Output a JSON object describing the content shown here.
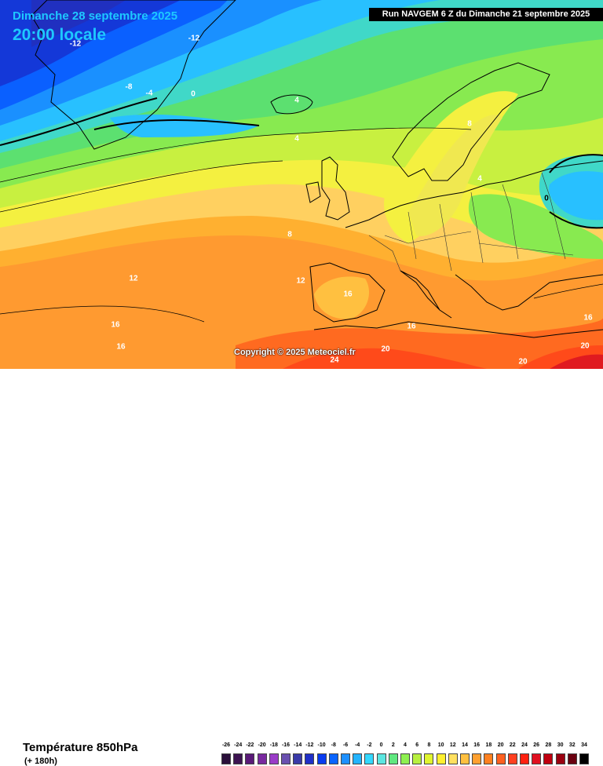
{
  "header": {
    "date": "Dimanche 28 septembre 2025",
    "time": "20:00 locale",
    "run": "Run NAVGEM 6 Z du Dimanche 21 septembre 2025"
  },
  "copyright": "Copyright © 2025 Meteociel.fr",
  "variable": {
    "title": "Température 850hPa",
    "lead": "(+ 180h)"
  },
  "isotherm_labels": [
    {
      "text": "-12"
    },
    {
      "text": "-12"
    },
    {
      "text": "-8"
    },
    {
      "text": "-4"
    },
    {
      "text": "0"
    },
    {
      "text": "4"
    },
    {
      "text": "4"
    },
    {
      "text": "8"
    },
    {
      "text": "4"
    },
    {
      "text": "0"
    },
    {
      "text": "8"
    },
    {
      "text": "12"
    },
    {
      "text": "12"
    },
    {
      "text": "16"
    },
    {
      "text": "16"
    },
    {
      "text": "16"
    },
    {
      "text": "16"
    },
    {
      "text": "16"
    },
    {
      "text": "20"
    },
    {
      "text": "24"
    },
    {
      "text": "20"
    },
    {
      "text": "20"
    }
  ],
  "legend": {
    "unit_ticks": [
      "-26",
      "-24",
      "-22",
      "-20",
      "-18",
      "-16",
      "-14",
      "-12",
      "-10",
      "-8",
      "-6",
      "-4",
      "-2",
      "0",
      "2",
      "4",
      "6",
      "8",
      "10",
      "12",
      "14",
      "16",
      "18",
      "20",
      "22",
      "24",
      "26",
      "28",
      "30",
      "32",
      "34"
    ],
    "colors": [
      "#2a0f3a",
      "#3d1452",
      "#5a1a78",
      "#7a2aa0",
      "#9a3cc8",
      "#6a50b0",
      "#3a3aa8",
      "#2030c8",
      "#0a3cf0",
      "#0a64ff",
      "#1e90ff",
      "#24b4ff",
      "#34d8ff",
      "#5ce6e0",
      "#60e880",
      "#8ef050",
      "#b8f040",
      "#e0f530",
      "#fff030",
      "#ffe060",
      "#ffc040",
      "#ffa030",
      "#ff8020",
      "#ff6020",
      "#ff4020",
      "#ff2010",
      "#e01020",
      "#c00010",
      "#9a0010",
      "#6a0010",
      "#000000"
    ]
  }
}
